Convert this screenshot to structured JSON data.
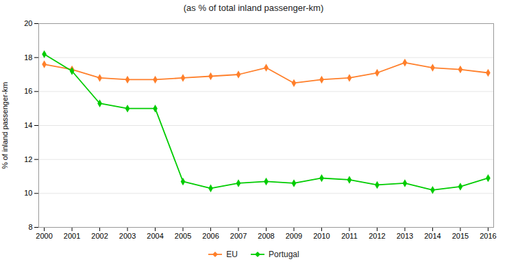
{
  "chart_data": {
    "type": "line",
    "title": "(as % of total inland passenger-km)",
    "ylabel": "% of inland passenger-km",
    "x": [
      2000,
      2001,
      2002,
      2003,
      2004,
      2005,
      2006,
      2007,
      2008,
      2009,
      2010,
      2011,
      2012,
      2013,
      2014,
      2015,
      2016
    ],
    "series": [
      {
        "name": "EU",
        "color": "#ff7f2a",
        "values": [
          17.6,
          17.3,
          16.8,
          16.7,
          16.7,
          16.8,
          16.9,
          17.0,
          17.4,
          16.5,
          16.7,
          16.8,
          17.1,
          17.7,
          17.4,
          17.3,
          17.1
        ]
      },
      {
        "name": "Portugal",
        "color": "#00cc00",
        "values": [
          18.2,
          17.2,
          15.3,
          15.0,
          15.0,
          10.7,
          10.3,
          10.6,
          10.7,
          10.6,
          10.9,
          10.8,
          10.5,
          10.6,
          10.2,
          10.4,
          10.9
        ]
      }
    ],
    "xlim": [
      1999.8,
      2016.2
    ],
    "xticks": [
      2000,
      2001,
      2002,
      2003,
      2004,
      2005,
      2006,
      2007,
      2008,
      2009,
      2010,
      2011,
      2012,
      2013,
      2014,
      2015,
      2016
    ],
    "ylim": [
      8,
      20
    ],
    "yticks": [
      8,
      10,
      12,
      14,
      16,
      18,
      20
    ],
    "grid": true,
    "legend": "bottom",
    "marker": "diamond"
  }
}
